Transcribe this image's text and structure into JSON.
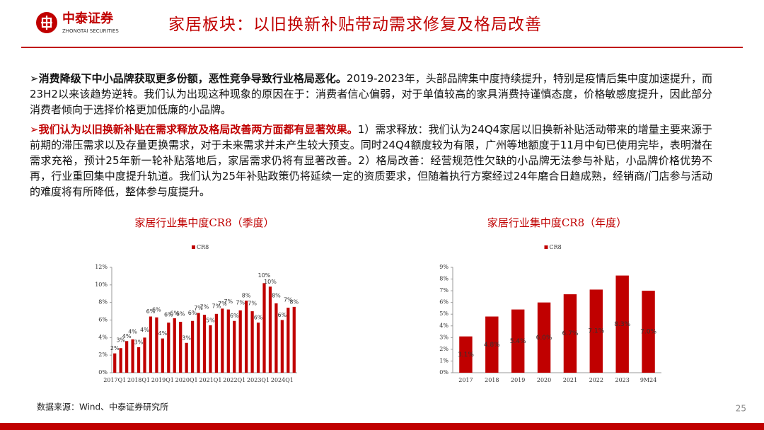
{
  "header": {
    "brand": "中泰证券",
    "brand_en": "ZHONGTAI SECURITIES",
    "title": "家居板块：以旧换新补贴带动需求修复及格局改善"
  },
  "bullets": [
    {
      "lead": "消费降级下中小品牌获取更多份额，恶性竞争导致行业格局恶化。",
      "text": "2019-2023年，头部品牌集中度持续提升，特别是疫情后集中度加速提升，而23H2以来该趋势逆转。我们认为出现这种现象的原因在于：消费者信心偏弱，对于单值较高的家具消费持谨慎态度，价格敏感度提升，因此部分消费者倾向于选择价格更加低廉的小品牌。"
    },
    {
      "lead": "我们认为以旧换新补贴在需求释放及格局改善两方面都有显著效果。",
      "text": "1）需求释放：我们认为24Q4家居以旧换新补贴活动带来的增量主要来源于前期的滞压需求以及存量更换需求，对于未来需求并未产生较大预支。同时24Q4额度较为有限，广州等地额度于11月中旬已使用完毕，表明潜在需求充裕，预计25年新一轮补贴落地后，家居需求仍将有显著改善。2）格局改善：经营规范性欠缺的小品牌无法参与补贴，小品牌价格优势不再，行业重回集中度提升轨道。我们认为25年补贴政策仍将延续一定的资质要求，但随着执行方案经过24年磨合日趋成熟，经销商/门店参与活动的难度将有所降低，整体参与度提升。"
    }
  ],
  "chart_data": [
    {
      "type": "bar",
      "title": "家居行业集中度CR8（季度）",
      "color": "#c00000",
      "categories": [
        "2017Q1",
        null,
        null,
        null,
        "2018Q1",
        null,
        null,
        null,
        "2019Q1",
        null,
        null,
        null,
        "2020Q1",
        null,
        null,
        null,
        "2021Q1",
        null,
        null,
        null,
        "2022Q1",
        null,
        null,
        null,
        "2023Q1",
        null,
        null,
        null,
        "2024Q1",
        null,
        null
      ],
      "series": [
        {
          "name": "CR8",
          "color": "#c00000",
          "values": [
            2.2,
            2.8,
            3.6,
            3.8,
            2.9,
            4.0,
            6.4,
            6.3,
            3.9,
            5.7,
            6.2,
            5.8,
            3.4,
            5.9,
            6.8,
            6.6,
            5.4,
            6.7,
            7.3,
            7.2,
            5.9,
            7.1,
            8.2,
            7.0,
            5.7,
            10.2,
            9.8,
            7.9,
            6.0,
            7.4,
            7.5
          ],
          "value_labels": [
            "2%",
            "3%",
            "4%",
            "4%",
            "3%",
            "4%",
            "6%",
            "6%",
            "4%",
            "6%",
            "6%",
            "6%",
            "3%",
            "6%",
            "7%",
            "7%",
            "5%",
            "7%",
            "7%",
            "7%",
            "6%",
            "7%",
            "8%",
            "7%",
            "6%",
            "10%",
            "10%",
            "8%",
            "6%",
            "7%",
            "8%"
          ]
        }
      ],
      "ylim": [
        0,
        12
      ],
      "yticks": [
        {
          "value": 0,
          "label": "0%"
        },
        {
          "value": 2,
          "label": "2%"
        },
        {
          "value": 4,
          "label": "4%"
        },
        {
          "value": 6,
          "label": "6%"
        },
        {
          "value": 8,
          "label": "8%"
        },
        {
          "value": 10,
          "label": "10%"
        },
        {
          "value": 12,
          "label": "12%"
        }
      ]
    },
    {
      "type": "bar",
      "title": "家居行业集中度CR8（年度）",
      "color": "#c00000",
      "categories": [
        "2017",
        "2018",
        "2019",
        "2020",
        "2021",
        "2022",
        "2023",
        "9M24"
      ],
      "series": [
        {
          "name": "CR8",
          "color": "#c00000",
          "values": [
            3.1,
            4.8,
            5.4,
            6.0,
            6.7,
            7.1,
            8.3,
            7.0
          ],
          "value_labels": [
            "3.1%",
            "4.8%",
            "5.4%",
            "6.0%",
            "6.7%",
            "7.1%",
            "8.3%",
            "7.0%"
          ]
        }
      ],
      "ylim": [
        0,
        9
      ],
      "yticks": [
        {
          "value": 0,
          "label": "0%"
        },
        {
          "value": 1,
          "label": "1%"
        },
        {
          "value": 2,
          "label": "2%"
        },
        {
          "value": 3,
          "label": "3%"
        },
        {
          "value": 4,
          "label": "4%"
        },
        {
          "value": 5,
          "label": "5%"
        },
        {
          "value": 6,
          "label": "6%"
        },
        {
          "value": 7,
          "label": "7%"
        },
        {
          "value": 8,
          "label": "8%"
        },
        {
          "value": 9,
          "label": "9%"
        }
      ]
    }
  ],
  "source": "数据来源：Wind、中泰证券研究所",
  "page_number": "25"
}
